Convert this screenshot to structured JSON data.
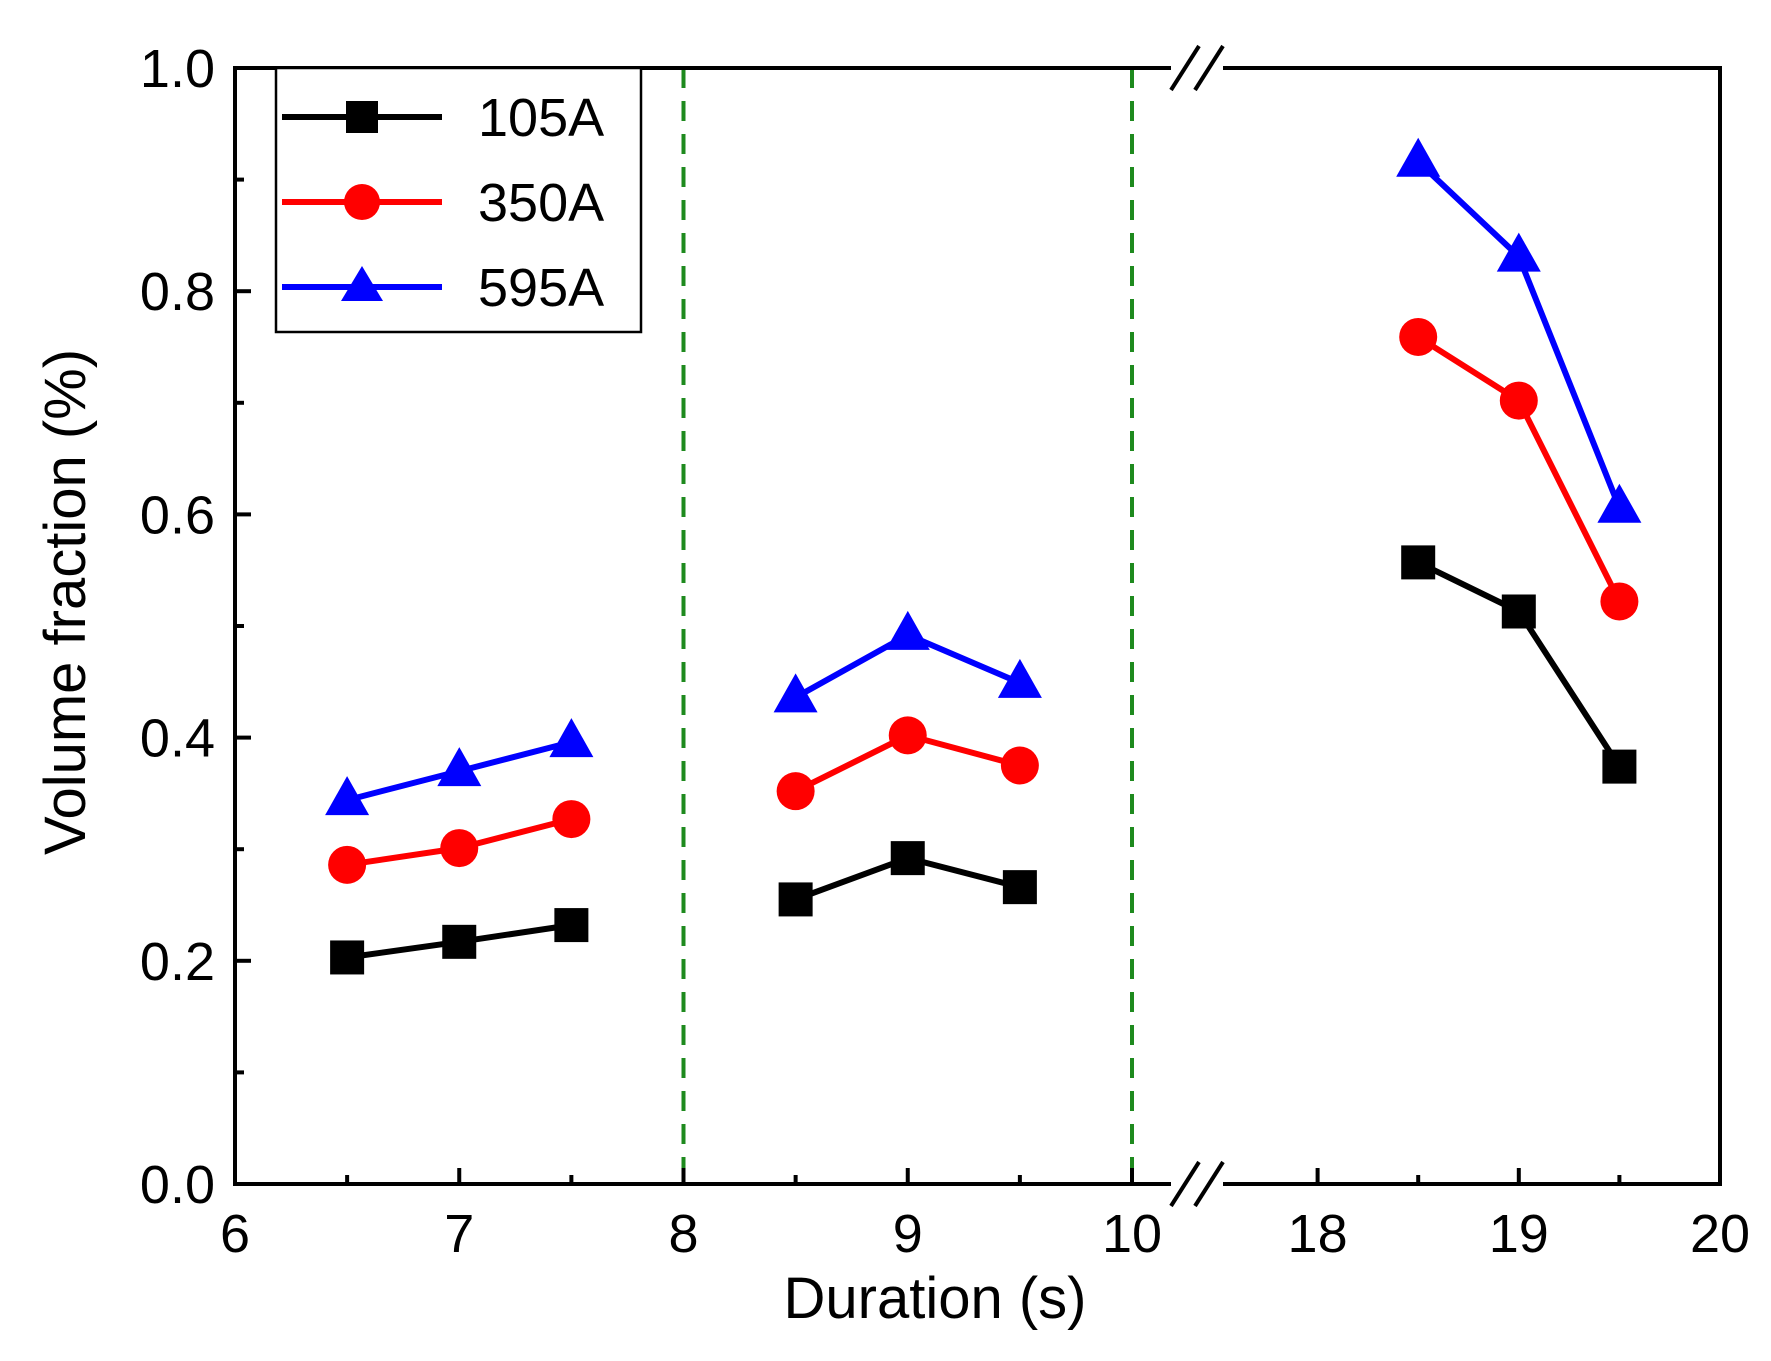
{
  "chart_data": {
    "type": "line",
    "xlabel": "Duration (s)",
    "ylabel": "Volume fraction (%)",
    "ylim": [
      0,
      1.0
    ],
    "y_ticks": [
      "0.0",
      "0.2",
      "0.4",
      "0.6",
      "0.8",
      "1.0"
    ],
    "x_segments": [
      {
        "range": [
          6,
          10
        ],
        "ticks": [
          "6",
          "7",
          "8",
          "9",
          "10"
        ]
      },
      {
        "range": [
          17.5,
          20
        ],
        "ticks": [
          "18",
          "19",
          "20"
        ]
      }
    ],
    "axis_break": "//",
    "reference_lines": [
      8,
      10
    ],
    "reference_line_color": "#1e8a1e",
    "legend_position": "top-left",
    "series": [
      {
        "name": "105A",
        "color": "#000000",
        "marker": "square",
        "x": [
          6.5,
          7.0,
          7.5,
          8.5,
          9.0,
          9.5,
          18.5,
          19.0,
          19.5
        ],
        "values": [
          0.203,
          0.217,
          0.232,
          0.255,
          0.292,
          0.266,
          0.557,
          0.513,
          0.374
        ]
      },
      {
        "name": "350A",
        "color": "#ff0000",
        "marker": "circle",
        "x": [
          6.5,
          7.0,
          7.5,
          8.5,
          9.0,
          9.5,
          18.5,
          19.0,
          19.5
        ],
        "values": [
          0.286,
          0.301,
          0.327,
          0.352,
          0.402,
          0.375,
          0.759,
          0.702,
          0.522
        ]
      },
      {
        "name": "595A",
        "color": "#0000ff",
        "marker": "triangle",
        "x": [
          6.5,
          7.0,
          7.5,
          8.5,
          9.0,
          9.5,
          18.5,
          19.0,
          19.5
        ],
        "values": [
          0.344,
          0.37,
          0.396,
          0.436,
          0.492,
          0.449,
          0.916,
          0.831,
          0.606
        ]
      }
    ],
    "segments": [
      [
        0,
        3
      ],
      [
        3,
        6
      ],
      [
        6,
        9
      ]
    ]
  }
}
